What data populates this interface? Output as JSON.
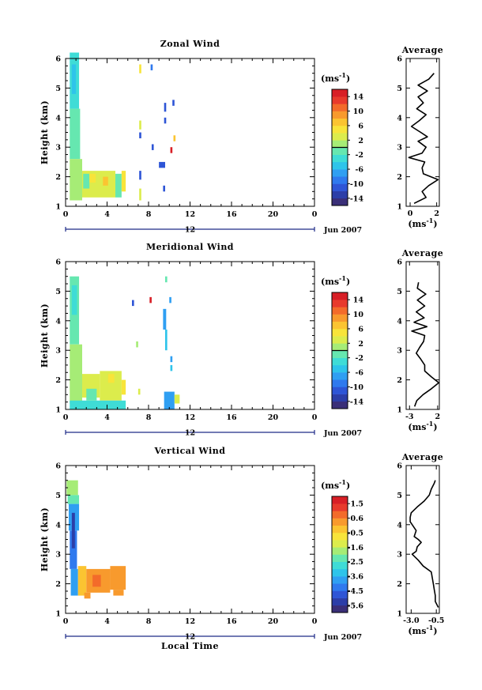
{
  "chart_data": [
    {
      "type": "heatmap",
      "title": "Zonal Wind",
      "ylabel": "Height (km)",
      "yticks": [
        "1",
        "2",
        "3",
        "4",
        "5",
        "6"
      ],
      "ylim": [
        1,
        6
      ],
      "xticks": [
        "0",
        "4",
        "8",
        "12",
        "16",
        "20",
        "0"
      ],
      "xlim": [
        0,
        24
      ],
      "date_bar": {
        "label": "12",
        "date": "Jun 2007"
      },
      "colorbar": {
        "unit": "(ms",
        "unit_exp": "-1",
        "unit_close": ")",
        "ticks": [
          "14",
          "10",
          "6",
          "2",
          "-2",
          "-6",
          "-10",
          "-14"
        ],
        "range": [
          -16,
          16
        ],
        "zero_line": 0
      },
      "cells": [
        {
          "t0": 0.4,
          "t1": 1.3,
          "h0": 4.3,
          "h1": 6.2,
          "v": -4
        },
        {
          "t0": 0.6,
          "t1": 1.0,
          "h0": 4.8,
          "h1": 5.8,
          "v": -6
        },
        {
          "t0": 0.4,
          "t1": 1.4,
          "h0": 2.6,
          "h1": 4.3,
          "v": -2
        },
        {
          "t0": 0.4,
          "t1": 1.6,
          "h0": 1.2,
          "h1": 2.6,
          "v": 1
        },
        {
          "t0": 0.6,
          "t1": 1.2,
          "h0": 2.8,
          "h1": 3.5,
          "v": -1
        },
        {
          "t0": 1.6,
          "t1": 3.2,
          "h0": 1.3,
          "h1": 2.2,
          "v": 3
        },
        {
          "t0": 1.7,
          "t1": 2.3,
          "h0": 1.6,
          "h1": 2.1,
          "v": -1
        },
        {
          "t0": 3.2,
          "t1": 4.8,
          "h0": 1.3,
          "h1": 2.2,
          "v": 2
        },
        {
          "t0": 2.3,
          "t1": 2.9,
          "h0": 1.8,
          "h1": 2.1,
          "v": 5
        },
        {
          "t0": 4.8,
          "t1": 5.4,
          "h0": 1.3,
          "h1": 2.1,
          "v": -1
        },
        {
          "t0": 5.4,
          "t1": 5.8,
          "h0": 1.5,
          "h1": 2.2,
          "v": 4
        },
        {
          "t0": 3.6,
          "t1": 4.1,
          "h0": 1.7,
          "h1": 2.0,
          "v": 6
        },
        {
          "t0": 7.1,
          "t1": 7.3,
          "h0": 5.5,
          "h1": 5.8,
          "v": 4
        },
        {
          "t0": 8.2,
          "t1": 8.4,
          "h0": 5.6,
          "h1": 5.8,
          "v": -10
        },
        {
          "t0": 7.1,
          "t1": 7.3,
          "h0": 3.6,
          "h1": 3.9,
          "v": 3
        },
        {
          "t0": 9.5,
          "t1": 9.7,
          "h0": 4.2,
          "h1": 4.5,
          "v": -12
        },
        {
          "t0": 10.3,
          "t1": 10.5,
          "h0": 4.4,
          "h1": 4.6,
          "v": -12
        },
        {
          "t0": 9.5,
          "t1": 9.7,
          "h0": 3.8,
          "h1": 4.0,
          "v": -12
        },
        {
          "t0": 7.1,
          "t1": 7.3,
          "h0": 3.3,
          "h1": 3.5,
          "v": -12
        },
        {
          "t0": 10.1,
          "t1": 10.3,
          "h0": 2.8,
          "h1": 3.0,
          "v": 14
        },
        {
          "t0": 8.3,
          "t1": 8.5,
          "h0": 2.9,
          "h1": 3.1,
          "v": -12
        },
        {
          "t0": 9.0,
          "t1": 9.6,
          "h0": 2.3,
          "h1": 2.5,
          "v": -12
        },
        {
          "t0": 7.1,
          "t1": 7.3,
          "h0": 1.9,
          "h1": 2.2,
          "v": -12
        },
        {
          "t0": 7.1,
          "t1": 7.3,
          "h0": 1.2,
          "h1": 1.6,
          "v": 3
        },
        {
          "t0": 9.4,
          "t1": 9.6,
          "h0": 1.5,
          "h1": 1.7,
          "v": -12
        },
        {
          "t0": 10.4,
          "t1": 10.6,
          "h0": 3.2,
          "h1": 3.4,
          "v": 6
        }
      ],
      "average": {
        "title": "Average",
        "unit": "(ms",
        "unit_exp": "-1",
        "unit_close": ")",
        "xticks": [
          "0",
          "2"
        ],
        "xlim": [
          -0.3,
          2.2
        ],
        "yticks": [
          "1",
          "2",
          "3",
          "4",
          "5",
          "6"
        ],
        "ylim": [
          1,
          6
        ],
        "h": [
          1.1,
          1.3,
          1.5,
          1.7,
          1.9,
          2.1,
          2.3,
          2.5,
          2.65,
          2.8,
          3.0,
          3.2,
          3.35,
          3.5,
          3.7,
          3.9,
          4.1,
          4.3,
          4.5,
          4.7,
          4.9,
          5.1,
          5.3,
          5.5
        ],
        "v": [
          0.3,
          1.2,
          0.9,
          1.4,
          2.1,
          1.0,
          0.9,
          1.1,
          -0.1,
          0.9,
          1.2,
          0.6,
          1.3,
          0.8,
          0.1,
          0.7,
          1.2,
          0.5,
          1.0,
          0.6,
          1.3,
          0.6,
          1.4,
          1.8
        ]
      }
    },
    {
      "type": "heatmap",
      "title": "Meridional Wind",
      "ylabel": "Height (km)",
      "yticks": [
        "1",
        "2",
        "3",
        "4",
        "5",
        "6"
      ],
      "ylim": [
        1,
        6
      ],
      "xticks": [
        "0",
        "4",
        "8",
        "12",
        "16",
        "20",
        "0"
      ],
      "xlim": [
        0,
        24
      ],
      "date_bar": {
        "label": "12",
        "date": "Jun 2007"
      },
      "colorbar": {
        "unit": "(ms",
        "unit_exp": "-1",
        "unit_close": ")",
        "ticks": [
          "14",
          "10",
          "6",
          "2",
          "-2",
          "-6",
          "-10",
          "-14"
        ],
        "range": [
          -16,
          16
        ],
        "zero_line": 0
      },
      "cells": [
        {
          "t0": 0.4,
          "t1": 1.3,
          "h0": 3.2,
          "h1": 5.5,
          "v": -2
        },
        {
          "t0": 0.6,
          "t1": 1.1,
          "h0": 4.2,
          "h1": 5.2,
          "v": -4
        },
        {
          "t0": 0.4,
          "t1": 1.6,
          "h0": 1.2,
          "h1": 3.2,
          "v": 0
        },
        {
          "t0": 1.6,
          "t1": 3.3,
          "h0": 1.4,
          "h1": 2.2,
          "v": 2
        },
        {
          "t0": 3.3,
          "t1": 5.4,
          "h0": 1.3,
          "h1": 2.3,
          "v": 3
        },
        {
          "t0": 0.4,
          "t1": 5.8,
          "h0": 1.0,
          "h1": 1.3,
          "v": -3
        },
        {
          "t0": 2.0,
          "t1": 3.0,
          "h0": 1.3,
          "h1": 1.7,
          "v": -1
        },
        {
          "t0": 4.1,
          "t1": 4.7,
          "h0": 1.9,
          "h1": 2.2,
          "v": 5
        },
        {
          "t0": 5.4,
          "t1": 5.8,
          "h0": 1.5,
          "h1": 2.0,
          "v": 4
        },
        {
          "t0": 6.4,
          "t1": 6.6,
          "h0": 4.5,
          "h1": 4.7,
          "v": -12
        },
        {
          "t0": 8.1,
          "t1": 8.3,
          "h0": 4.6,
          "h1": 4.8,
          "v": 14
        },
        {
          "t0": 9.6,
          "t1": 9.8,
          "h0": 5.3,
          "h1": 5.5,
          "v": -2
        },
        {
          "t0": 9.4,
          "t1": 9.7,
          "h0": 3.7,
          "h1": 4.4,
          "v": -8
        },
        {
          "t0": 9.6,
          "t1": 9.8,
          "h0": 3.0,
          "h1": 3.7,
          "v": -6
        },
        {
          "t0": 10.0,
          "t1": 10.2,
          "h0": 4.6,
          "h1": 4.8,
          "v": -8
        },
        {
          "t0": 10.1,
          "t1": 10.3,
          "h0": 2.6,
          "h1": 2.8,
          "v": -8
        },
        {
          "t0": 10.1,
          "t1": 10.3,
          "h0": 2.3,
          "h1": 2.5,
          "v": -6
        },
        {
          "t0": 9.5,
          "t1": 10.5,
          "h0": 1.0,
          "h1": 1.6,
          "v": -8
        },
        {
          "t0": 10.5,
          "t1": 11.0,
          "h0": 1.2,
          "h1": 1.5,
          "v": 3
        },
        {
          "t0": 7.0,
          "t1": 7.2,
          "h0": 1.5,
          "h1": 1.7,
          "v": 3
        },
        {
          "t0": 6.8,
          "t1": 7.0,
          "h0": 3.1,
          "h1": 3.3,
          "v": 0
        }
      ],
      "average": {
        "title": "Average",
        "unit": "(ms",
        "unit_exp": "-1",
        "unit_close": ")",
        "xticks": [
          "-3",
          "2"
        ],
        "xlim": [
          -3.6,
          2.3
        ],
        "yticks": [
          "1",
          "2",
          "3",
          "4",
          "5",
          "6"
        ],
        "ylim": [
          1,
          6
        ],
        "h": [
          1.1,
          1.3,
          1.5,
          1.7,
          1.9,
          2.1,
          2.3,
          2.5,
          2.7,
          2.9,
          3.1,
          3.3,
          3.5,
          3.65,
          3.8,
          3.95,
          4.1,
          4.3,
          4.5,
          4.7,
          4.9,
          5.1,
          5.3
        ],
        "v": [
          -2.1,
          -1.7,
          -0.6,
          0.9,
          2.2,
          0.9,
          -0.3,
          -0.3,
          -1.0,
          -1.8,
          -1.2,
          -0.5,
          -0.3,
          -2.6,
          0.1,
          -2.2,
          -0.4,
          -1.8,
          -0.3,
          -1.6,
          -0.1,
          -1.6,
          -1.4
        ]
      }
    },
    {
      "type": "heatmap",
      "title": "Vertical Wind",
      "ylabel": "Height (km)",
      "xlabel": "Local Time",
      "yticks": [
        "1",
        "2",
        "3",
        "4",
        "5",
        "6"
      ],
      "ylim": [
        1,
        6
      ],
      "xticks": [
        "0",
        "4",
        "8",
        "12",
        "16",
        "20",
        "0"
      ],
      "xlim": [
        0,
        24
      ],
      "date_bar": {
        "label": "12",
        "date": "Jun 2007"
      },
      "colorbar": {
        "unit": "(ms",
        "unit_exp": "-1",
        "unit_close": ")",
        "ticks": [
          "1.5",
          "0.6",
          "-0.5",
          "-1.6",
          "-2.5",
          "-3.6",
          "-4.5",
          "-5.6"
        ],
        "range": [
          -6,
          2
        ],
        "zero_line": null
      },
      "cells": [
        {
          "t0": 0.1,
          "t1": 1.2,
          "h0": 5.0,
          "h1": 5.5,
          "v": -1.6
        },
        {
          "t0": 0.2,
          "t1": 1.3,
          "h0": 4.7,
          "h1": 5.0,
          "v": -2.3
        },
        {
          "t0": 0.3,
          "t1": 1.3,
          "h0": 3.8,
          "h1": 4.7,
          "v": -3.6
        },
        {
          "t0": 0.4,
          "t1": 1.1,
          "h0": 2.5,
          "h1": 3.8,
          "v": -4.5
        },
        {
          "t0": 0.6,
          "t1": 0.9,
          "h0": 3.2,
          "h1": 4.4,
          "v": -5.2
        },
        {
          "t0": 0.5,
          "t1": 1.2,
          "h0": 1.6,
          "h1": 2.5,
          "v": -3.6
        },
        {
          "t0": 1.2,
          "t1": 2.0,
          "h0": 1.6,
          "h1": 2.6,
          "v": -0.2
        },
        {
          "t0": 2.0,
          "t1": 4.3,
          "h0": 1.7,
          "h1": 2.5,
          "v": 0.1
        },
        {
          "t0": 4.3,
          "t1": 5.8,
          "h0": 1.8,
          "h1": 2.6,
          "v": 0.4
        },
        {
          "t0": 2.6,
          "t1": 3.4,
          "h0": 1.9,
          "h1": 2.3,
          "v": 0.6
        },
        {
          "t0": 1.8,
          "t1": 2.4,
          "h0": 1.5,
          "h1": 1.7,
          "v": 0.0
        },
        {
          "t0": 4.6,
          "t1": 5.6,
          "h0": 1.6,
          "h1": 1.8,
          "v": 0.0
        }
      ],
      "average": {
        "title": "Average",
        "unit": "(ms",
        "unit_exp": "-1",
        "unit_close": ")",
        "xticks": [
          "-3.0",
          "-0.5"
        ],
        "xlim": [
          -3.5,
          -0.2
        ],
        "yticks": [
          "1",
          "2",
          "3",
          "4",
          "5",
          "6"
        ],
        "ylim": [
          1,
          6
        ],
        "h": [
          1.2,
          1.4,
          1.6,
          1.8,
          2.0,
          2.2,
          2.4,
          2.6,
          2.8,
          3.0,
          3.1,
          3.25,
          3.4,
          3.5,
          3.6,
          3.8,
          3.95,
          4.1,
          4.25,
          4.4,
          4.6,
          4.8,
          5.0,
          5.2,
          5.4,
          5.5
        ],
        "v": [
          -0.3,
          -0.6,
          -0.6,
          -0.7,
          -0.8,
          -0.9,
          -1.0,
          -1.8,
          -2.3,
          -2.9,
          -2.5,
          -2.4,
          -2.0,
          -2.3,
          -2.7,
          -2.5,
          -2.8,
          -3.1,
          -3.1,
          -3.0,
          -2.4,
          -1.7,
          -1.2,
          -1.0,
          -0.7,
          -0.6
        ]
      }
    }
  ]
}
